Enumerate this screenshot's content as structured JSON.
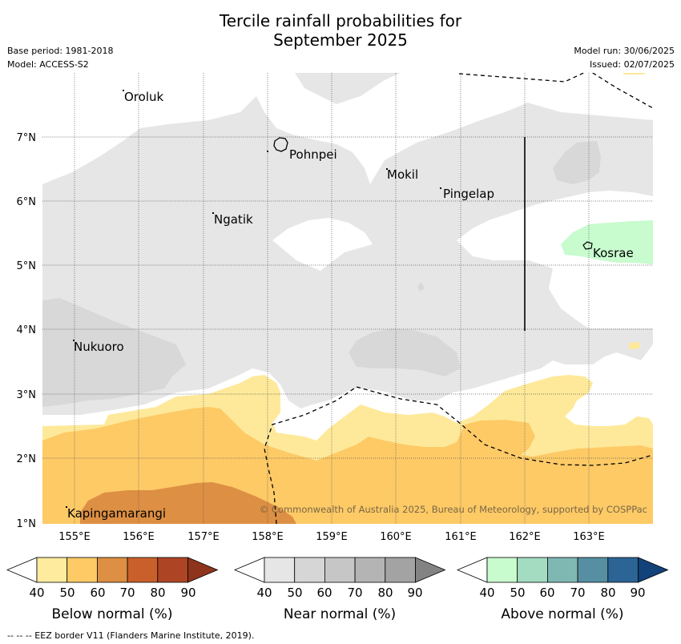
{
  "title": {
    "line1": "Tercile rainfall probabilities for",
    "line2": "September 2025"
  },
  "meta": {
    "base_period": "Base period: 1981-2018",
    "model": "Model: ACCESS-S2",
    "model_run": "Model run: 30/06/2025",
    "issued": "Issued: 02/07/2025"
  },
  "map": {
    "lat_labels": [
      "7°N",
      "6°N",
      "5°N",
      "4°N",
      "3°N",
      "2°N",
      "1°N"
    ],
    "lon_labels": [
      "155°E",
      "156°E",
      "157°E",
      "158°E",
      "159°E",
      "160°E",
      "161°E",
      "162°E",
      "163°E"
    ],
    "places": [
      "Oroluk",
      "Pohnpei",
      "Mokil",
      "Pingelap",
      "Ngatik",
      "Kosrae",
      "Nukuoro",
      "Kapingamarangi"
    ],
    "copyright": "© Commonwealth of Australia 2025, Bureau of Meteorology, supported by COSPPac",
    "colors": {
      "near_light": "#e6e6e6",
      "near_mid": "#d8d8d8",
      "above_light": "#c8fbce",
      "below_50": "#fee99a",
      "below_60": "#fdca66",
      "below_70": "#dd8f43"
    }
  },
  "colorbars": [
    {
      "label": "Below normal (%)",
      "ticks": [
        "40",
        "50",
        "60",
        "70",
        "80",
        "90"
      ],
      "colors": [
        "#ffffff",
        "#feeb9e",
        "#fdca66",
        "#dd8f43",
        "#c9602c",
        "#ad4524",
        "#8f341c"
      ]
    },
    {
      "label": "Near normal (%)",
      "ticks": [
        "40",
        "50",
        "60",
        "70",
        "80",
        "90"
      ],
      "colors": [
        "#ffffff",
        "#e6e6e6",
        "#d6d6d6",
        "#c6c6c6",
        "#b4b4b4",
        "#a3a3a3",
        "#838383"
      ]
    },
    {
      "label": "Above normal (%)",
      "ticks": [
        "40",
        "50",
        "60",
        "70",
        "80",
        "90"
      ],
      "colors": [
        "#ffffff",
        "#c8fbce",
        "#a4dcc2",
        "#7fb7b3",
        "#568fa2",
        "#2d6496",
        "#11427a"
      ]
    }
  ],
  "footnote": "--  --  -- EEZ border V11 (Flanders Marine Institute, 2019)."
}
